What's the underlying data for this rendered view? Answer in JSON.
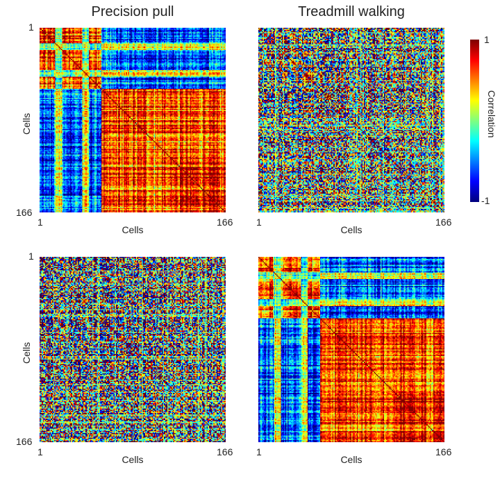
{
  "chart_data": [
    {
      "type": "heatmap",
      "title": "Precision pull",
      "xlabel": "Cells",
      "ylabel": "Cells",
      "x_ticks": [
        "1",
        "166"
      ],
      "y_ticks": [
        "1",
        "166"
      ],
      "size": 166,
      "pattern": "clustered",
      "clim": [
        -1,
        1
      ]
    },
    {
      "type": "heatmap",
      "title": "Treadmill walking",
      "xlabel": "Cells",
      "ylabel": "",
      "x_ticks": [
        "1",
        "166"
      ],
      "y_ticks": [],
      "size": 166,
      "pattern": "unstructured",
      "clim": [
        -1,
        1
      ]
    },
    {
      "type": "heatmap",
      "title": "",
      "xlabel": "Cells",
      "ylabel": "Cells",
      "x_ticks": [
        "1",
        "166"
      ],
      "y_ticks": [
        "1",
        "166"
      ],
      "size": 166,
      "pattern": "unstructured",
      "clim": [
        -1,
        1
      ]
    },
    {
      "type": "heatmap",
      "title": "",
      "xlabel": "Cells",
      "ylabel": "",
      "x_ticks": [
        "1",
        "166"
      ],
      "y_ticks": [],
      "size": 166,
      "pattern": "clustered",
      "clim": [
        -1,
        1
      ]
    }
  ],
  "colorbar": {
    "label": "Correlation",
    "max_label": "1",
    "min_label": "-1",
    "colormap": "jet",
    "range": [
      -1,
      1
    ]
  }
}
